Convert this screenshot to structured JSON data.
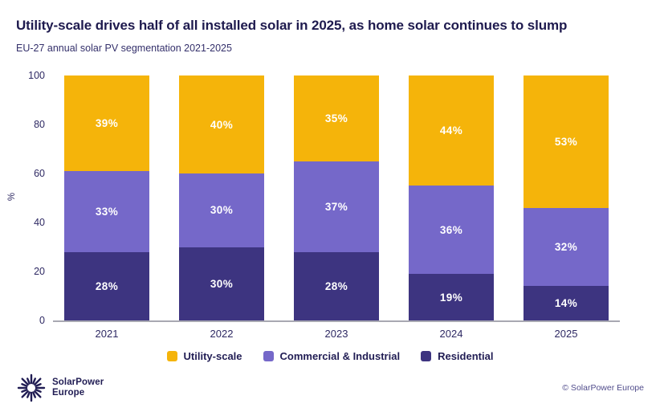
{
  "header": {
    "title": "Utility-scale drives half of all installed solar in 2025, as home solar continues to slump",
    "subtitle": "EU-27 annual solar PV segmentation 2021-2025"
  },
  "chart_data": {
    "type": "bar",
    "stacked": true,
    "title": "Utility-scale drives half of all installed solar in 2025, as home solar continues to slump",
    "subtitle": "EU-27 annual solar PV segmentation 2021-2025",
    "categories": [
      "2021",
      "2022",
      "2023",
      "2024",
      "2025"
    ],
    "series": [
      {
        "name": "Utility-scale",
        "color": "#F5B40A",
        "values": [
          39,
          40,
          35,
          44,
          53
        ]
      },
      {
        "name": "Commercial & Industrial",
        "color": "#7568C9",
        "values": [
          33,
          30,
          37,
          36,
          32
        ]
      },
      {
        "name": "Residential",
        "color": "#3D3480",
        "values": [
          28,
          30,
          28,
          19,
          14
        ]
      }
    ],
    "xlabel": "",
    "ylabel": "%",
    "ylim": [
      0,
      100
    ],
    "yticks": [
      0,
      20,
      40,
      60,
      80,
      100
    ],
    "grid": false,
    "legend_position": "bottom",
    "legend_order": [
      "Utility-scale",
      "Commercial & Industrial",
      "Residential"
    ],
    "value_label_format": "{v}%"
  },
  "footer": {
    "logo_line1": "SolarPower",
    "logo_line2": "Europe",
    "copyright": "© SolarPower Europe"
  },
  "colors": {
    "utility_scale": "#F5B40A",
    "commercial_industrial": "#7568C9",
    "residential": "#3D3480",
    "title_text": "#1E1A4E",
    "axis_text": "#2E2963",
    "axis_line": "#A8A8B2",
    "logo_navy": "#211D54",
    "copyright_text": "#514D8C"
  }
}
